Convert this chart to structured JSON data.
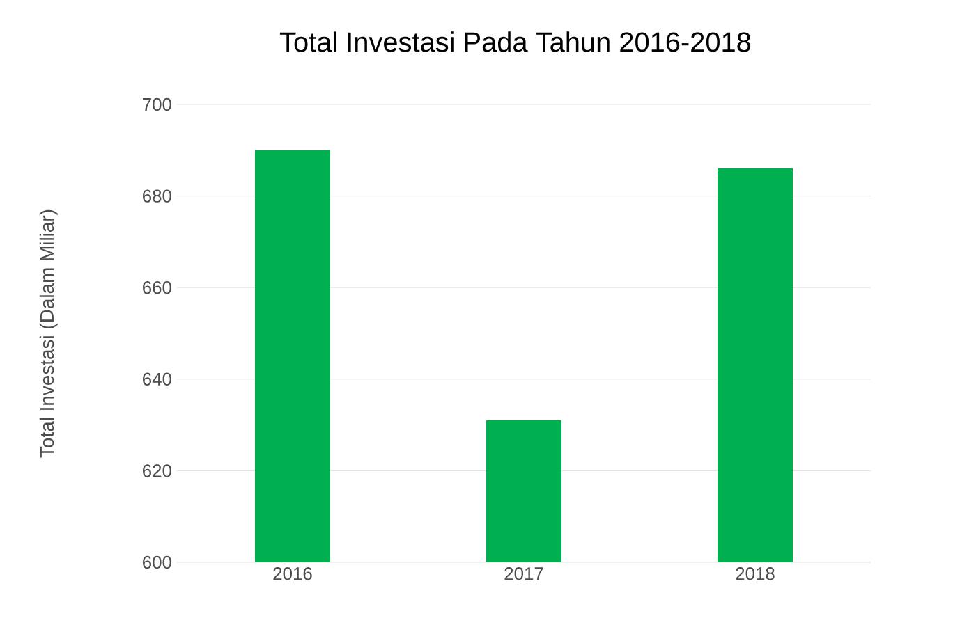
{
  "chart_data": {
    "type": "bar",
    "title": "Total Investasi Pada Tahun 2016-2018",
    "ylabel": "Total Investasi (Dalam Miliar)",
    "categories": [
      "2016",
      "2017",
      "2018"
    ],
    "values": [
      690,
      631,
      686
    ],
    "color": "#00b050",
    "ylim": [
      600,
      700
    ],
    "yticks": [
      600,
      620,
      640,
      660,
      680,
      700
    ],
    "grid": "y"
  }
}
